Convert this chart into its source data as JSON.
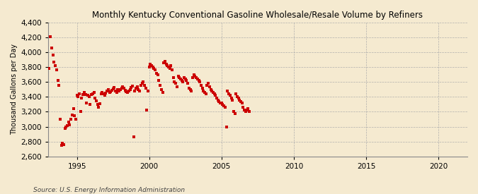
{
  "title": "Monthly Kentucky Conventional Gasoline Wholesale/Resale Volume by Refiners",
  "ylabel": "Thousand Gallons per Day",
  "source": "Source: U.S. Energy Information Administration",
  "background_color": "#f5ead0",
  "plot_bg_color": "#f5ead0",
  "dot_color": "#cc0000",
  "dot_size": 6,
  "xlim": [
    1993,
    2022
  ],
  "ylim": [
    2600,
    4400
  ],
  "yticks": [
    2600,
    2800,
    3000,
    3200,
    3400,
    3600,
    3800,
    4000,
    4200,
    4400
  ],
  "xticks": [
    1995,
    2000,
    2005,
    2010,
    2015,
    2020
  ],
  "data": [
    [
      1993.08,
      3780
    ],
    [
      1993.17,
      4210
    ],
    [
      1993.25,
      4060
    ],
    [
      1993.33,
      3960
    ],
    [
      1993.42,
      3870
    ],
    [
      1993.5,
      3820
    ],
    [
      1993.58,
      3760
    ],
    [
      1993.67,
      3620
    ],
    [
      1993.75,
      3560
    ],
    [
      1993.83,
      3100
    ],
    [
      1993.92,
      2750
    ],
    [
      1994.0,
      2780
    ],
    [
      1994.08,
      2760
    ],
    [
      1994.17,
      2980
    ],
    [
      1994.25,
      3000
    ],
    [
      1994.33,
      3010
    ],
    [
      1994.42,
      3060
    ],
    [
      1994.5,
      3020
    ],
    [
      1994.58,
      3100
    ],
    [
      1994.67,
      3160
    ],
    [
      1994.75,
      3240
    ],
    [
      1994.83,
      3150
    ],
    [
      1994.92,
      3100
    ],
    [
      1995.0,
      3420
    ],
    [
      1995.08,
      3400
    ],
    [
      1995.17,
      3440
    ],
    [
      1995.25,
      3200
    ],
    [
      1995.33,
      3380
    ],
    [
      1995.42,
      3430
    ],
    [
      1995.5,
      3460
    ],
    [
      1995.58,
      3430
    ],
    [
      1995.67,
      3320
    ],
    [
      1995.75,
      3420
    ],
    [
      1995.83,
      3400
    ],
    [
      1995.92,
      3300
    ],
    [
      1996.0,
      3430
    ],
    [
      1996.08,
      3440
    ],
    [
      1996.17,
      3460
    ],
    [
      1996.25,
      3380
    ],
    [
      1996.33,
      3350
    ],
    [
      1996.42,
      3300
    ],
    [
      1996.5,
      3260
    ],
    [
      1996.58,
      3310
    ],
    [
      1996.67,
      3440
    ],
    [
      1996.75,
      3460
    ],
    [
      1996.83,
      3440
    ],
    [
      1996.92,
      3420
    ],
    [
      1997.0,
      3450
    ],
    [
      1997.08,
      3480
    ],
    [
      1997.17,
      3500
    ],
    [
      1997.25,
      3460
    ],
    [
      1997.33,
      3470
    ],
    [
      1997.42,
      3490
    ],
    [
      1997.5,
      3510
    ],
    [
      1997.58,
      3530
    ],
    [
      1997.67,
      3480
    ],
    [
      1997.75,
      3460
    ],
    [
      1997.83,
      3500
    ],
    [
      1997.92,
      3480
    ],
    [
      1998.0,
      3500
    ],
    [
      1998.08,
      3520
    ],
    [
      1998.17,
      3540
    ],
    [
      1998.25,
      3520
    ],
    [
      1998.33,
      3490
    ],
    [
      1998.42,
      3470
    ],
    [
      1998.5,
      3460
    ],
    [
      1998.58,
      3480
    ],
    [
      1998.67,
      3500
    ],
    [
      1998.75,
      3530
    ],
    [
      1998.83,
      3550
    ],
    [
      1998.92,
      2860
    ],
    [
      1999.0,
      3480
    ],
    [
      1999.08,
      3520
    ],
    [
      1999.17,
      3540
    ],
    [
      1999.25,
      3500
    ],
    [
      1999.33,
      3480
    ],
    [
      1999.42,
      3560
    ],
    [
      1999.5,
      3580
    ],
    [
      1999.58,
      3600
    ],
    [
      1999.67,
      3560
    ],
    [
      1999.75,
      3520
    ],
    [
      1999.83,
      3220
    ],
    [
      1999.92,
      3480
    ],
    [
      2000.0,
      3800
    ],
    [
      2000.08,
      3840
    ],
    [
      2000.17,
      3820
    ],
    [
      2000.25,
      3800
    ],
    [
      2000.33,
      3780
    ],
    [
      2000.42,
      3760
    ],
    [
      2000.5,
      3720
    ],
    [
      2000.58,
      3700
    ],
    [
      2000.67,
      3620
    ],
    [
      2000.75,
      3560
    ],
    [
      2000.83,
      3500
    ],
    [
      2000.92,
      3460
    ],
    [
      2001.0,
      3860
    ],
    [
      2001.08,
      3880
    ],
    [
      2001.17,
      3840
    ],
    [
      2001.25,
      3820
    ],
    [
      2001.33,
      3800
    ],
    [
      2001.42,
      3780
    ],
    [
      2001.5,
      3820
    ],
    [
      2001.58,
      3760
    ],
    [
      2001.67,
      3660
    ],
    [
      2001.75,
      3600
    ],
    [
      2001.83,
      3580
    ],
    [
      2001.92,
      3540
    ],
    [
      2002.0,
      3680
    ],
    [
      2002.08,
      3660
    ],
    [
      2002.17,
      3640
    ],
    [
      2002.25,
      3620
    ],
    [
      2002.33,
      3600
    ],
    [
      2002.42,
      3660
    ],
    [
      2002.5,
      3640
    ],
    [
      2002.58,
      3620
    ],
    [
      2002.67,
      3580
    ],
    [
      2002.75,
      3520
    ],
    [
      2002.83,
      3500
    ],
    [
      2002.92,
      3480
    ],
    [
      2003.0,
      3660
    ],
    [
      2003.08,
      3700
    ],
    [
      2003.17,
      3680
    ],
    [
      2003.25,
      3660
    ],
    [
      2003.33,
      3640
    ],
    [
      2003.42,
      3620
    ],
    [
      2003.5,
      3600
    ],
    [
      2003.58,
      3560
    ],
    [
      2003.67,
      3520
    ],
    [
      2003.75,
      3480
    ],
    [
      2003.83,
      3460
    ],
    [
      2003.92,
      3440
    ],
    [
      2004.0,
      3560
    ],
    [
      2004.08,
      3580
    ],
    [
      2004.17,
      3540
    ],
    [
      2004.25,
      3500
    ],
    [
      2004.33,
      3480
    ],
    [
      2004.42,
      3460
    ],
    [
      2004.5,
      3440
    ],
    [
      2004.58,
      3420
    ],
    [
      2004.67,
      3380
    ],
    [
      2004.75,
      3360
    ],
    [
      2004.83,
      3340
    ],
    [
      2004.92,
      3320
    ],
    [
      2005.0,
      3320
    ],
    [
      2005.08,
      3300
    ],
    [
      2005.17,
      3280
    ],
    [
      2005.25,
      3260
    ],
    [
      2005.33,
      3000
    ],
    [
      2005.42,
      3480
    ],
    [
      2005.5,
      3440
    ],
    [
      2005.58,
      3420
    ],
    [
      2005.67,
      3380
    ],
    [
      2005.75,
      3360
    ],
    [
      2005.83,
      3200
    ],
    [
      2005.92,
      3180
    ],
    [
      2006.0,
      3440
    ],
    [
      2006.08,
      3400
    ],
    [
      2006.17,
      3380
    ],
    [
      2006.25,
      3360
    ],
    [
      2006.33,
      3340
    ],
    [
      2006.42,
      3320
    ],
    [
      2006.5,
      3260
    ],
    [
      2006.58,
      3220
    ],
    [
      2006.67,
      3200
    ],
    [
      2006.75,
      3220
    ],
    [
      2006.83,
      3240
    ],
    [
      2006.92,
      3200
    ]
  ]
}
